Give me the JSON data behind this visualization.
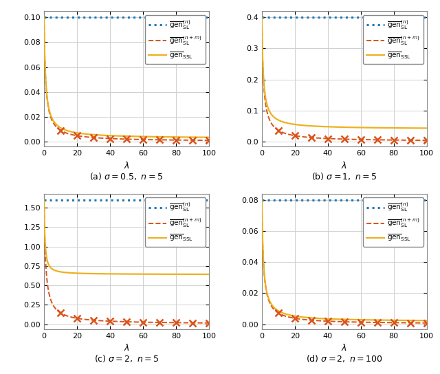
{
  "subplots": [
    {
      "sigma": 0.5,
      "n": 5,
      "caption": "(a) $\\sigma = 0.5,\\ n = 5$"
    },
    {
      "sigma": 1.0,
      "n": 5,
      "caption": "(b) $\\sigma = 1,\\ n = 5$"
    },
    {
      "sigma": 2.0,
      "n": 5,
      "caption": "(c) $\\sigma = 2,\\ n = 5$"
    },
    {
      "sigma": 2.0,
      "n": 100,
      "caption": "(d) $\\sigma = 2,\\ n = 100$"
    }
  ],
  "color_sl_n": "#1f77b4",
  "color_sl_nm": "#d95319",
  "color_ssl": "#edb120",
  "bg_color": "#ffffff",
  "grid_color": "#b0b0b0"
}
